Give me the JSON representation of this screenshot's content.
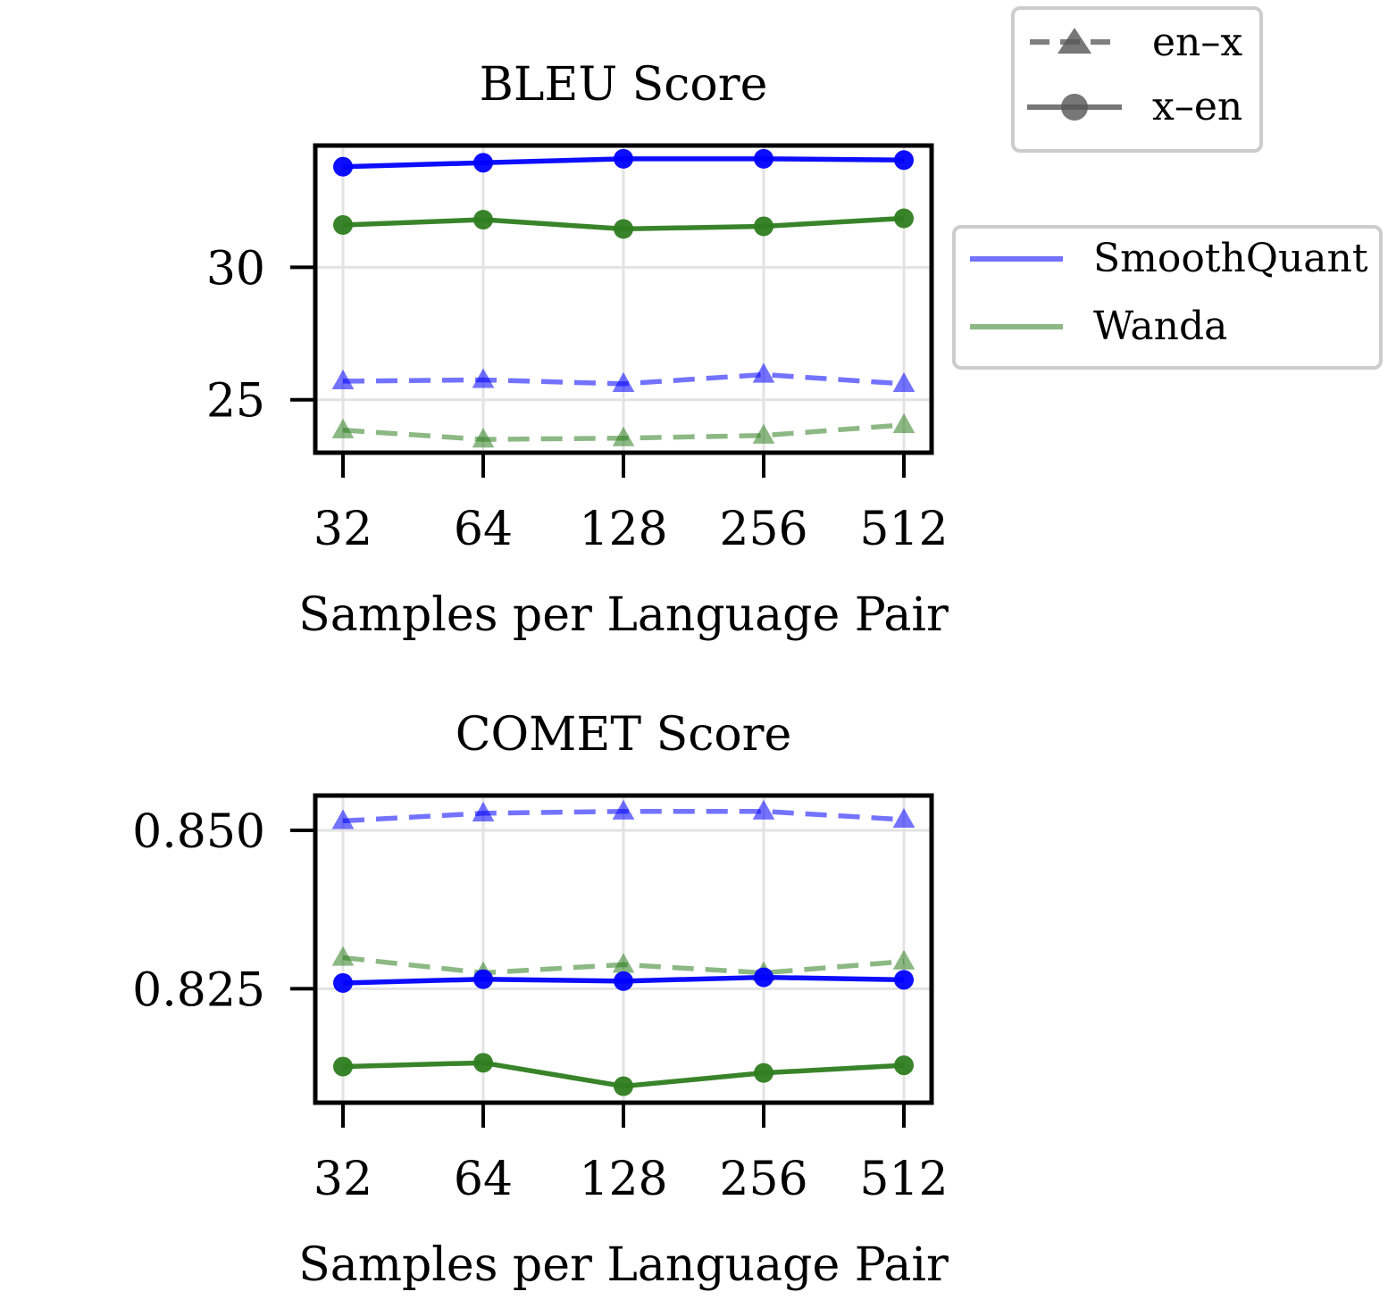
{
  "legends": {
    "direction": {
      "placement": "top-right",
      "entries": [
        {
          "label": "en–x",
          "style": "dashed",
          "marker": "triangle"
        },
        {
          "label": "x–en",
          "style": "solid",
          "marker": "circle"
        }
      ]
    },
    "method": {
      "placement": "right",
      "entries": [
        {
          "label": "SmoothQuant",
          "color": "#0000ff"
        },
        {
          "label": "Wanda",
          "color": "#2e7d1f"
        }
      ]
    }
  },
  "chart_data": [
    {
      "type": "line",
      "title": "BLEU Score",
      "xlabel": "Samples per Language Pair",
      "ylabel": "",
      "categories": [
        "32",
        "64",
        "128",
        "256",
        "512"
      ],
      "ylim": [
        23.0,
        34.6
      ],
      "yticks": [
        "25",
        "30"
      ],
      "ytick_values": [
        25,
        30
      ],
      "grid": true,
      "series": [
        {
          "method": "SmoothQuant",
          "direction": "x–en",
          "color": "#0000ff",
          "dashed": false,
          "marker": "circle",
          "values": [
            33.8,
            33.95,
            34.1,
            34.1,
            34.05
          ]
        },
        {
          "method": "Wanda",
          "direction": "x–en",
          "color": "#2e7d1f",
          "dashed": false,
          "marker": "circle",
          "values": [
            31.6,
            31.8,
            31.45,
            31.55,
            31.85
          ]
        },
        {
          "method": "SmoothQuant",
          "direction": "en–x",
          "color": "#0000ff",
          "dashed": true,
          "marker": "triangle",
          "values": [
            25.7,
            25.75,
            25.6,
            25.95,
            25.6
          ]
        },
        {
          "method": "Wanda",
          "direction": "en–x",
          "color": "#2e7d1f",
          "dashed": true,
          "marker": "triangle",
          "values": [
            23.85,
            23.5,
            23.55,
            23.65,
            24.05
          ]
        }
      ]
    },
    {
      "type": "line",
      "title": "COMET Score",
      "xlabel": "Samples per Language Pair",
      "ylabel": "",
      "categories": [
        "32",
        "64",
        "128",
        "256",
        "512"
      ],
      "ylim": [
        0.807,
        0.8555
      ],
      "yticks": [
        "0.825",
        "0.850"
      ],
      "ytick_values": [
        0.825,
        0.85
      ],
      "grid": true,
      "series": [
        {
          "method": "SmoothQuant",
          "direction": "en–x",
          "color": "#0000ff",
          "dashed": true,
          "marker": "triangle",
          "values": [
            0.8515,
            0.8527,
            0.853,
            0.853,
            0.8517
          ]
        },
        {
          "method": "Wanda",
          "direction": "en–x",
          "color": "#2e7d1f",
          "dashed": true,
          "marker": "triangle",
          "values": [
            0.8299,
            0.8275,
            0.8288,
            0.8275,
            0.8293
          ]
        },
        {
          "method": "SmoothQuant",
          "direction": "x–en",
          "color": "#0000ff",
          "dashed": false,
          "marker": "circle",
          "values": [
            0.8259,
            0.8265,
            0.8262,
            0.8268,
            0.8264
          ]
        },
        {
          "method": "Wanda",
          "direction": "x–en",
          "color": "#2e7d1f",
          "dashed": false,
          "marker": "circle",
          "values": [
            0.8127,
            0.8133,
            0.8096,
            0.8117,
            0.8129
          ]
        }
      ]
    }
  ]
}
